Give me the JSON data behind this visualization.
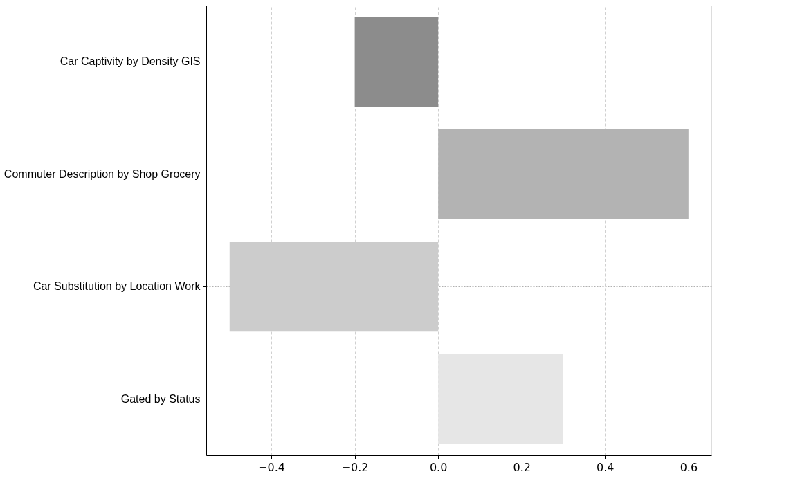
{
  "chart_data": {
    "type": "bar",
    "orientation": "horizontal",
    "categories": [
      "Car Captivity by Density GIS",
      "Commuter Description by Shop Grocery",
      "Car Substitution by Location Work",
      "Gated by Status"
    ],
    "values": [
      -0.2,
      0.6,
      -0.5,
      0.3
    ],
    "colors": [
      "#8c8c8c",
      "#b3b3b3",
      "#cccccc",
      "#e6e6e6"
    ],
    "xlim": [
      -0.556,
      0.655
    ],
    "xticks": [
      {
        "value": -0.4,
        "label": "−0.4"
      },
      {
        "value": -0.2,
        "label": "−0.2"
      },
      {
        "value": 0,
        "label": "0.0"
      },
      {
        "value": 0.2,
        "label": "0.2"
      },
      {
        "value": 0.4,
        "label": "0.4"
      },
      {
        "value": 0.6,
        "label": "0.6"
      }
    ],
    "grid": true
  }
}
